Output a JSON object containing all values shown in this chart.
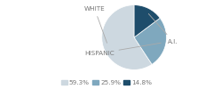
{
  "labels": [
    "WHITE",
    "HISPANIC",
    "A.I."
  ],
  "values": [
    59.3,
    25.9,
    14.8
  ],
  "colors": [
    "#cdd8e0",
    "#7fa8be",
    "#1e4d6b"
  ],
  "legend_labels": [
    "59.3%",
    "25.9%",
    "14.8%"
  ],
  "label_fontsize": 5.2,
  "legend_fontsize": 5.2,
  "startangle": 90,
  "text_color": "#777777",
  "line_color": "#aaaaaa"
}
